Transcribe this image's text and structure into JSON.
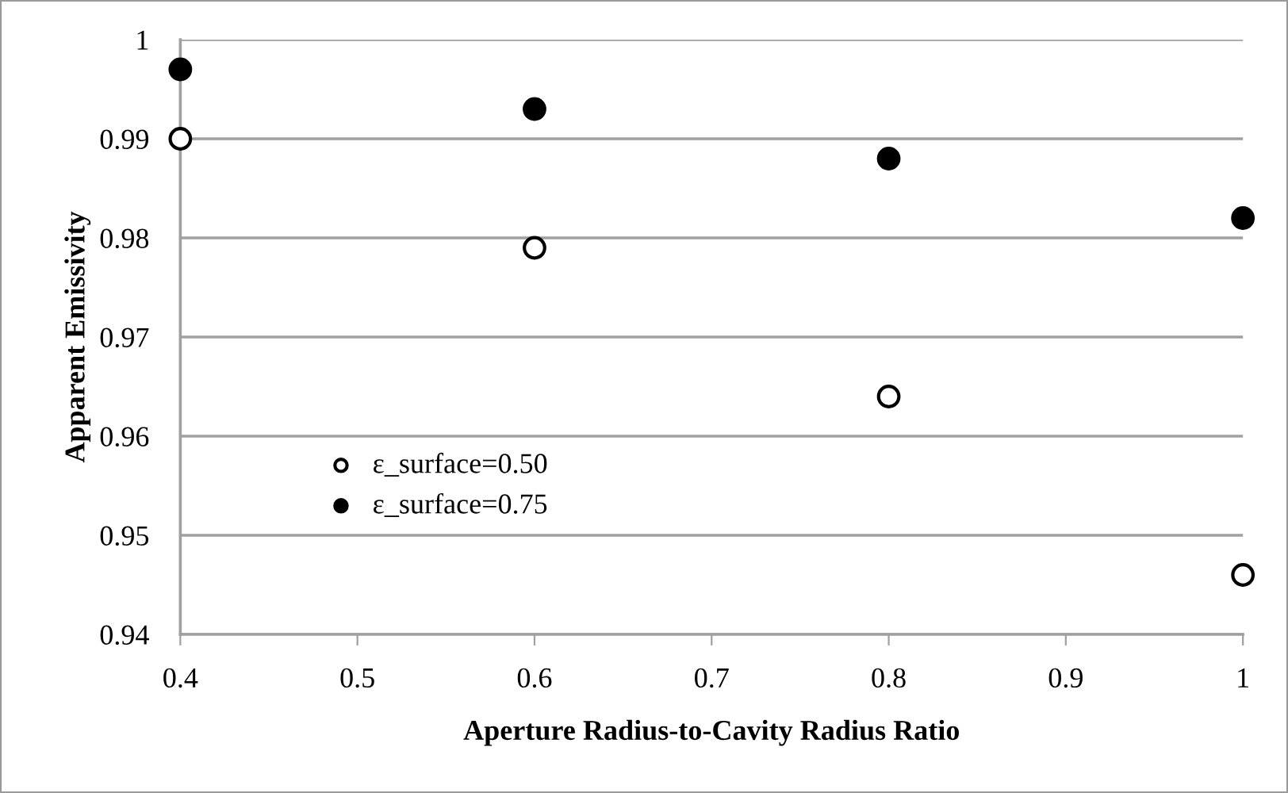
{
  "chart_data": {
    "type": "scatter",
    "xlabel": "Aperture Radius-to-Cavity Radius Ratio",
    "ylabel": "Apparent Emissivity",
    "x": [
      0.4,
      0.6,
      0.8,
      1.0
    ],
    "series": [
      {
        "name": "ε_surface=0.50",
        "color": "#ffffff",
        "values": [
          0.99,
          0.979,
          0.964,
          0.946
        ]
      },
      {
        "name": "ε_surface=0.75",
        "color": "#000000",
        "values": [
          0.997,
          0.993,
          0.988,
          0.982
        ]
      }
    ],
    "xlim": [
      0.4,
      1.0
    ],
    "xticks": [
      0.4,
      0.5,
      0.6,
      0.7,
      0.8,
      0.9,
      1
    ],
    "ylim": [
      0.94,
      1.0
    ],
    "yticks": [
      0.94,
      0.95,
      0.96,
      0.97,
      0.98,
      0.99,
      1
    ],
    "grid": "y",
    "legend": "lower left",
    "marker": "circle"
  }
}
